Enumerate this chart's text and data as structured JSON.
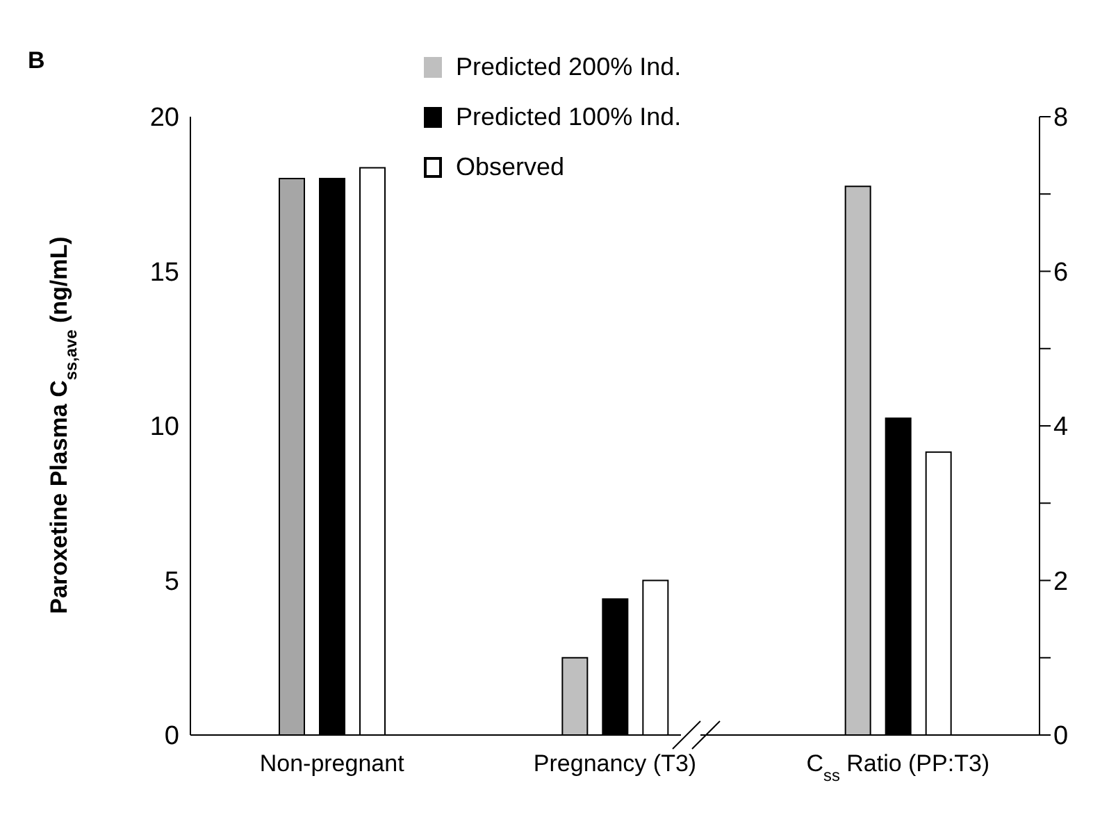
{
  "chart_data": {
    "type": "bar",
    "title": "B",
    "ylabel": "Paroxetine Plasma C$_{ss,ave}$ (ng/mL)",
    "categories": [
      "Non-pregnant",
      "Pregnancy (T3)",
      "C$_{ss}$ Ratio (PP:T3)"
    ],
    "series": [
      {
        "name": "Predicted 200% Ind.",
        "color": "#bfbfbf",
        "colors": [
          "#a6a6a6",
          "#bfbfbf",
          "#bfbfbf"
        ],
        "values": [
          18.0,
          2.5,
          null
        ]
      },
      {
        "name": "Predicted 100% Ind.",
        "color": "#000000",
        "values": [
          18.0,
          4.4,
          null
        ]
      },
      {
        "name": "Observed",
        "color": "#ffffff",
        "values": [
          18.35,
          5.0,
          null
        ]
      },
      {
        "color": "#bfbfbf",
        "axis": "y2",
        "values": [
          null,
          null,
          7.1
        ]
      },
      {
        "color": "#000000",
        "axis": "y2",
        "values": [
          null,
          null,
          4.1
        ]
      },
      {
        "color": "#ffffff",
        "axis": "y2",
        "values": [
          null,
          null,
          3.66
        ]
      }
    ],
    "ylim": [
      0,
      20
    ],
    "yticks": [
      0,
      5,
      10,
      15,
      20
    ],
    "y2lim": [
      0,
      8
    ],
    "y2ticks": [
      0,
      {
        "value": 1,
        "label": null
      },
      2,
      {
        "value": 3,
        "label": null
      },
      4,
      {
        "value": 5,
        "label": null
      },
      6,
      {
        "value": 7,
        "label": null
      },
      8
    ],
    "grid": false,
    "legend": "top"
  }
}
